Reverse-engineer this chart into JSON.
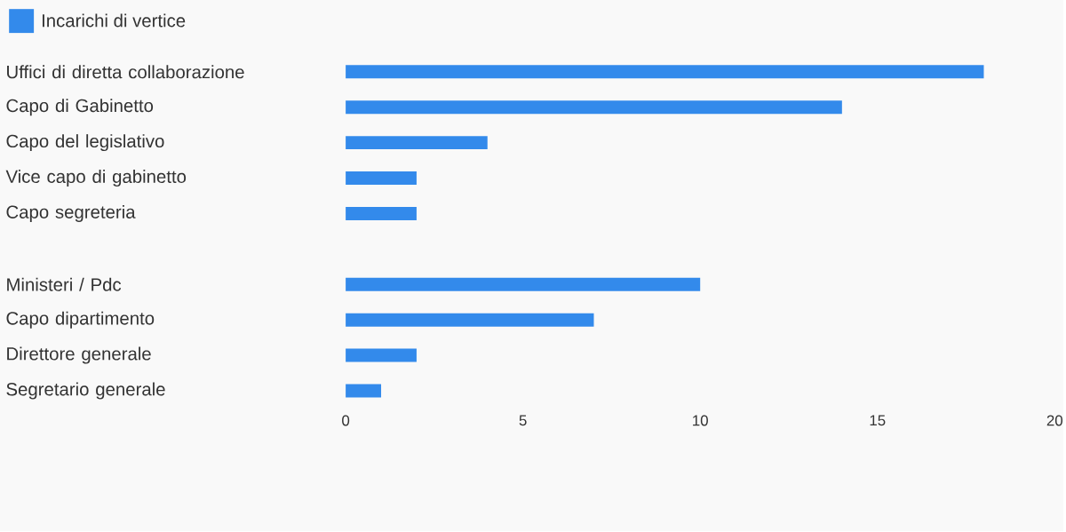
{
  "chart_data": {
    "type": "bar",
    "orientation": "horizontal",
    "legend": "top left",
    "categories": [
      "Uffici di diretta collaborazione",
      "Capo di Gabinetto",
      "Capo del legislativo",
      "Vice capo di gabinetto",
      "Capo segreteria",
      null,
      "Ministeri / Pdc",
      "Capo dipartimento",
      "Direttore generale",
      "Segretario generale"
    ],
    "series": [
      {
        "name": "Incarichi di vertice",
        "color": "#338aeb",
        "values": [
          18,
          14,
          4,
          2,
          2,
          null,
          10,
          7,
          2,
          1
        ]
      }
    ],
    "xlim": [
      0,
      20
    ],
    "xticks": [
      0,
      5,
      10,
      15,
      20
    ],
    "grid": false
  }
}
